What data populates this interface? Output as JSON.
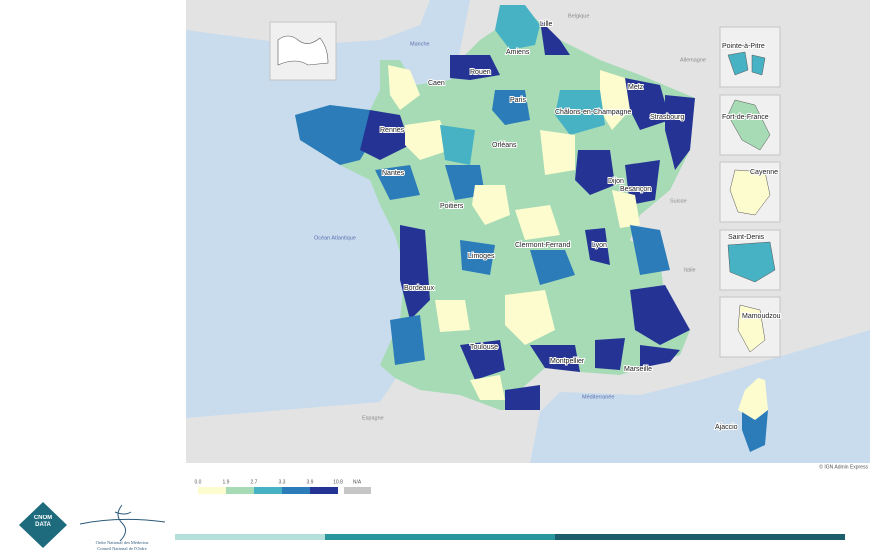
{
  "map": {
    "cities": [
      "Lille",
      "Amiens",
      "Rouen",
      "Caen",
      "Paris",
      "Metz",
      "Châlons-en-Champagne",
      "Strasbourg",
      "Rennes",
      "Orléans",
      "Nantes",
      "Dijon",
      "Besançon",
      "Poitiers",
      "Limoges",
      "Clermont-Ferrand",
      "Lyon",
      "Bordeaux",
      "Toulouse",
      "Montpellier",
      "Marseille",
      "Ajaccio"
    ],
    "places": [
      "Belgique",
      "Manche",
      "Allemagne",
      "Suisse",
      "Italie",
      "Océan Atlantique",
      "Espagne",
      "Méditerranée"
    ],
    "overseas": [
      "Pointe-à-Pitre",
      "Fort-de-France",
      "Cayenne",
      "Saint-Denis",
      "Mamoudzou"
    ],
    "credit": "© IGN Admin Express"
  },
  "legend": {
    "breaks": [
      {
        "value": 0,
        "label": "0.0"
      },
      1.9,
      2.7,
      3.3,
      3.9,
      10.8
    ],
    "colors": [
      "#fdfcce",
      "#a6dbb6",
      "#47b2c4",
      "#2c7cba",
      "#253494"
    ],
    "na_label": "N/A",
    "na_color": "#c6c6c6"
  },
  "footer": {
    "logo": "CNOM DATA",
    "org": "Ordre National des Médecins",
    "council": "Conseil National de l'Ordre"
  }
}
